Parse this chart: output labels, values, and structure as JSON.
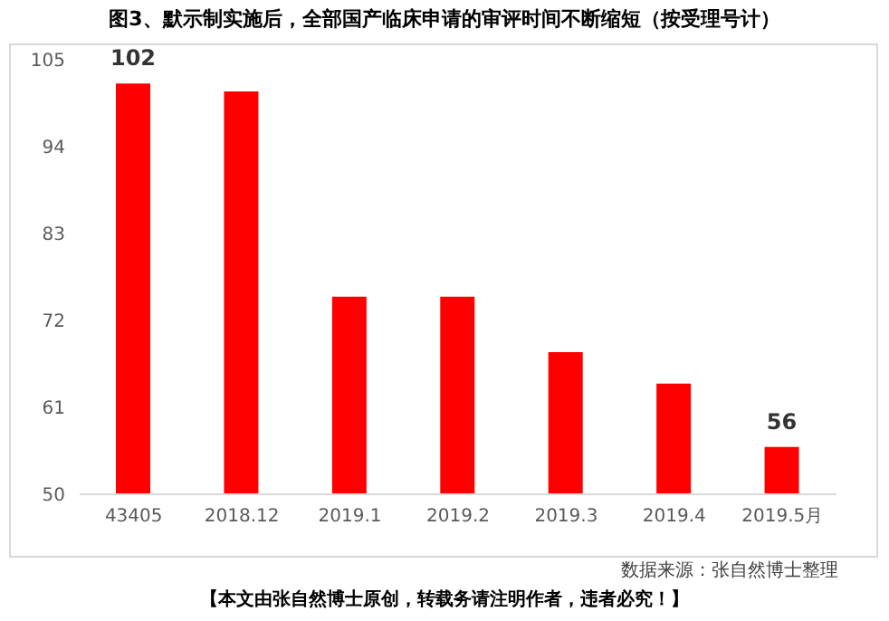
{
  "chart_data": {
    "type": "bar",
    "title": "图3、默示制实施后，全部国产临床申请的审评时间不断缩短（按受理号计）",
    "categories": [
      "43405",
      "2018.12",
      "2019.1",
      "2019.2",
      "2019.3",
      "2019.4",
      "2019.5月"
    ],
    "values": [
      102,
      101,
      75,
      75,
      68,
      64,
      56
    ],
    "value_labels": [
      "102",
      null,
      null,
      null,
      null,
      null,
      "56"
    ],
    "color": "#ff0000",
    "ylim": [
      50,
      105
    ],
    "yticks": [
      50,
      61,
      72,
      83,
      94,
      105
    ],
    "grid": false,
    "legend": false,
    "annotations": [
      "数据来源：张自然博士整理",
      "【本文由张自然博士原创，转载务请注明作者，违者必究！】"
    ]
  }
}
